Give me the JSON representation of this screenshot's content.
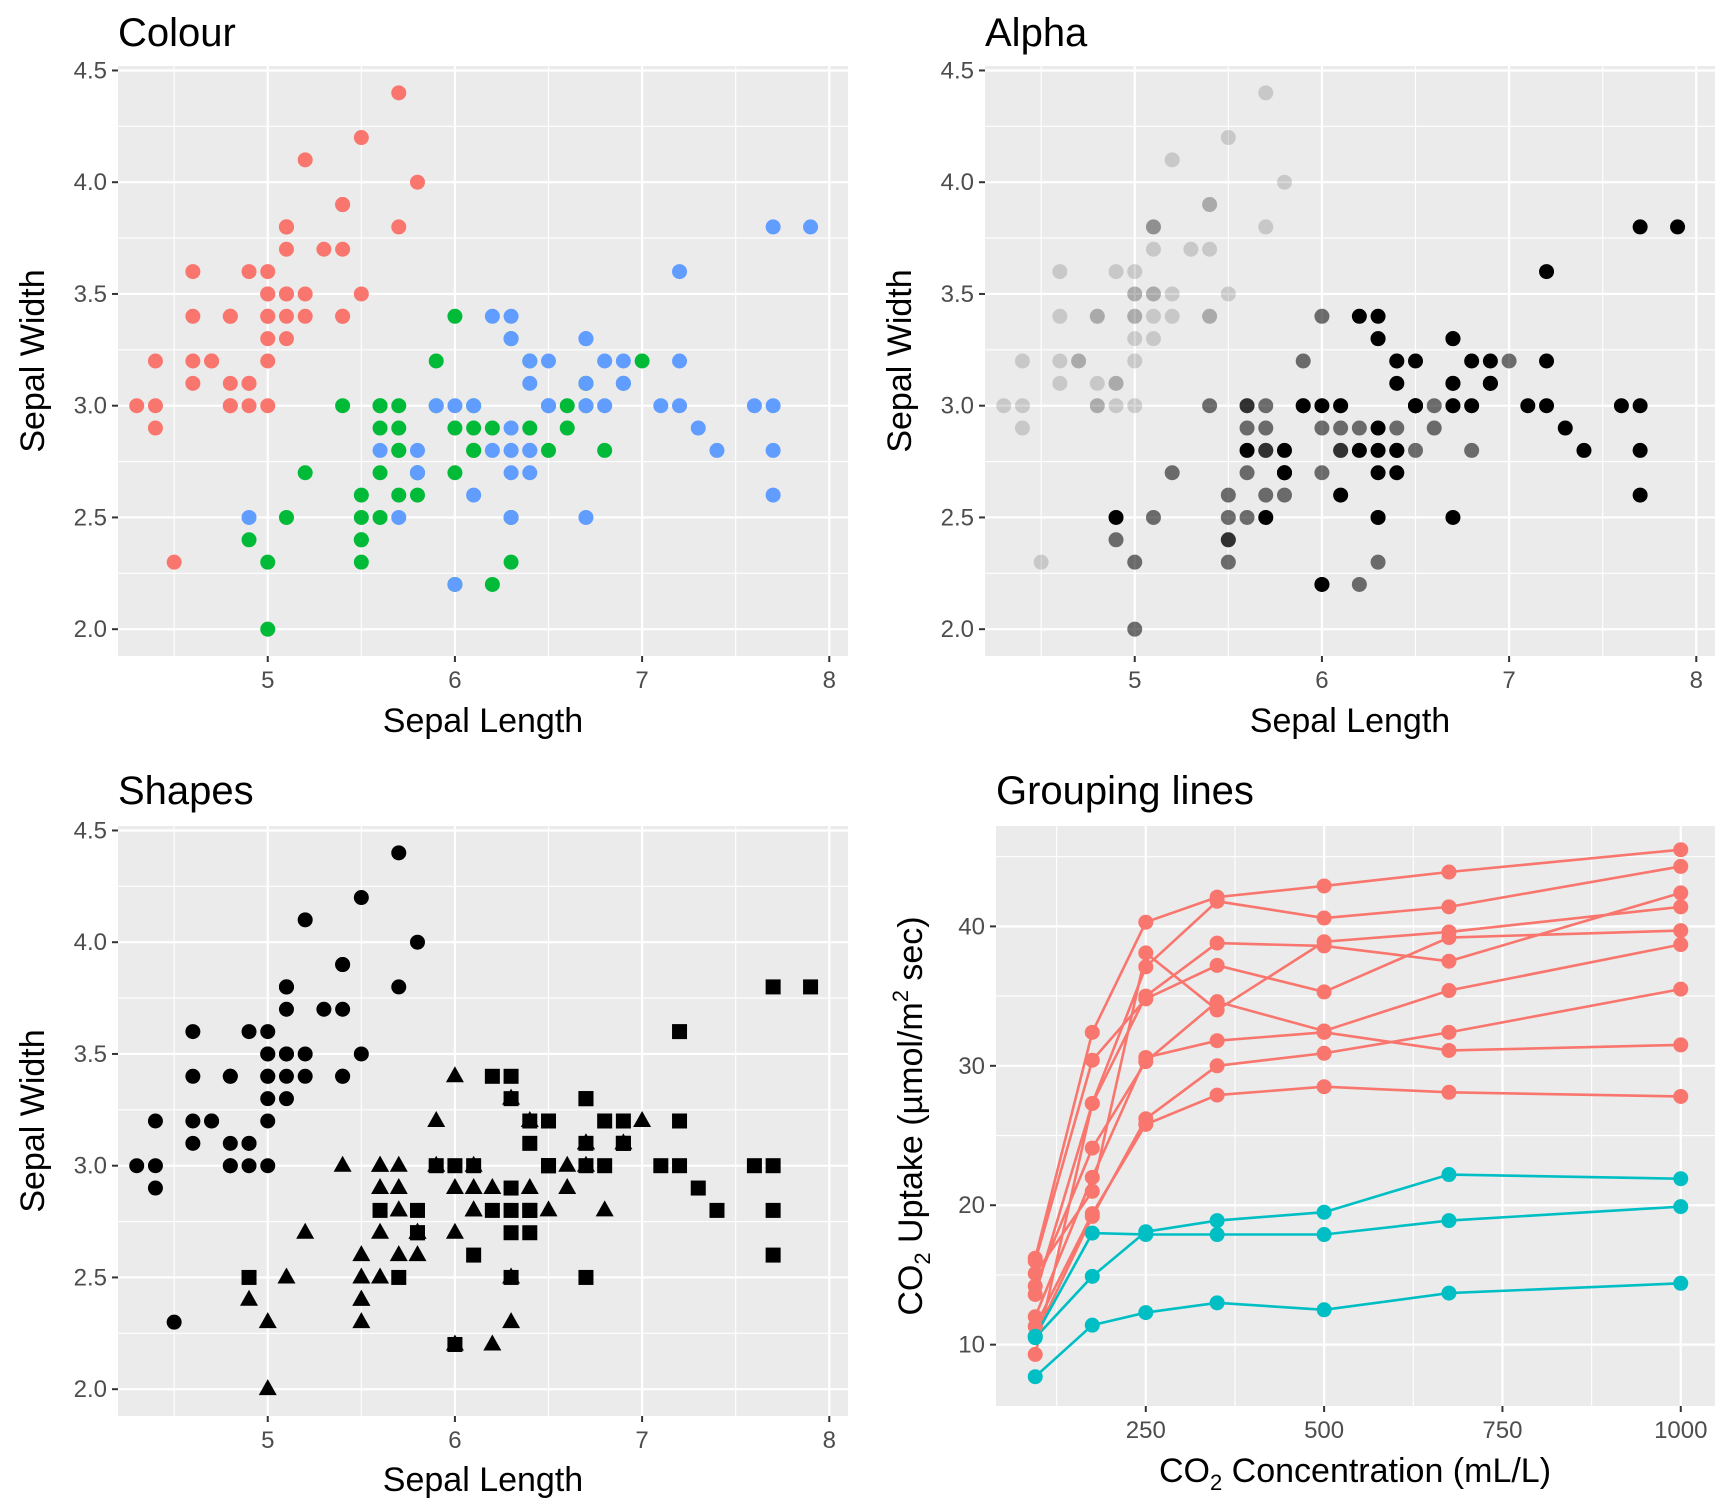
{
  "chart_data": [
    {
      "type": "scatter",
      "title": "Colour",
      "xlabel": "Sepal Length",
      "ylabel": "Sepal Width",
      "xlim": [
        4.2,
        8.1
      ],
      "ylim": [
        1.88,
        4.52
      ],
      "xticks": [
        5,
        6,
        7,
        8
      ],
      "yticks": [
        2.0,
        2.5,
        3.0,
        3.5,
        4.0,
        4.5
      ],
      "ytick_labels": [
        "2.0",
        "2.5",
        "3.0",
        "3.5",
        "4.0",
        "4.5"
      ],
      "encoding": "colour",
      "groups": [
        {
          "color": "#f8766d",
          "points": [
            [
              5.1,
              3.5
            ],
            [
              4.9,
              3.0
            ],
            [
              4.7,
              3.2
            ],
            [
              4.6,
              3.1
            ],
            [
              5.0,
              3.6
            ],
            [
              5.4,
              3.9
            ],
            [
              4.6,
              3.4
            ],
            [
              5.0,
              3.4
            ],
            [
              4.4,
              2.9
            ],
            [
              4.9,
              3.1
            ],
            [
              5.4,
              3.7
            ],
            [
              4.8,
              3.4
            ],
            [
              4.8,
              3.0
            ],
            [
              4.3,
              3.0
            ],
            [
              5.8,
              4.0
            ],
            [
              5.7,
              4.4
            ],
            [
              5.4,
              3.9
            ],
            [
              5.1,
              3.5
            ],
            [
              5.7,
              3.8
            ],
            [
              5.1,
              3.8
            ],
            [
              5.4,
              3.4
            ],
            [
              5.1,
              3.7
            ],
            [
              4.6,
              3.6
            ],
            [
              5.1,
              3.3
            ],
            [
              4.8,
              3.4
            ],
            [
              5.0,
              3.0
            ],
            [
              5.0,
              3.4
            ],
            [
              5.2,
              3.5
            ],
            [
              5.2,
              3.4
            ],
            [
              4.7,
              3.2
            ],
            [
              4.8,
              3.1
            ],
            [
              5.4,
              3.4
            ],
            [
              5.2,
              4.1
            ],
            [
              5.5,
              4.2
            ],
            [
              4.9,
              3.1
            ],
            [
              5.0,
              3.2
            ],
            [
              5.5,
              3.5
            ],
            [
              4.9,
              3.6
            ],
            [
              4.4,
              3.0
            ],
            [
              5.1,
              3.4
            ],
            [
              5.0,
              3.5
            ],
            [
              4.5,
              2.3
            ],
            [
              4.4,
              3.2
            ],
            [
              5.0,
              3.5
            ],
            [
              5.1,
              3.8
            ],
            [
              4.8,
              3.0
            ],
            [
              5.1,
              3.8
            ],
            [
              4.6,
              3.2
            ],
            [
              5.3,
              3.7
            ],
            [
              5.0,
              3.3
            ]
          ]
        },
        {
          "color": "#00ba38",
          "points": [
            [
              7.0,
              3.2
            ],
            [
              6.4,
              3.2
            ],
            [
              6.9,
              3.1
            ],
            [
              5.5,
              2.3
            ],
            [
              6.5,
              2.8
            ],
            [
              5.7,
              2.8
            ],
            [
              6.3,
              3.3
            ],
            [
              4.9,
              2.4
            ],
            [
              6.6,
              2.9
            ],
            [
              5.2,
              2.7
            ],
            [
              5.0,
              2.0
            ],
            [
              5.9,
              3.0
            ],
            [
              6.0,
              2.2
            ],
            [
              6.1,
              2.9
            ],
            [
              5.6,
              2.9
            ],
            [
              6.7,
              3.1
            ],
            [
              5.6,
              3.0
            ],
            [
              5.8,
              2.7
            ],
            [
              6.2,
              2.2
            ],
            [
              5.6,
              2.5
            ],
            [
              5.9,
              3.2
            ],
            [
              6.1,
              2.8
            ],
            [
              6.3,
              2.5
            ],
            [
              6.1,
              2.8
            ],
            [
              6.4,
              2.9
            ],
            [
              6.6,
              3.0
            ],
            [
              6.8,
              2.8
            ],
            [
              6.7,
              3.0
            ],
            [
              6.0,
              2.9
            ],
            [
              5.7,
              2.6
            ],
            [
              5.5,
              2.4
            ],
            [
              5.5,
              2.4
            ],
            [
              5.8,
              2.7
            ],
            [
              6.0,
              2.7
            ],
            [
              5.4,
              3.0
            ],
            [
              6.0,
              3.4
            ],
            [
              6.7,
              3.1
            ],
            [
              6.3,
              2.3
            ],
            [
              5.6,
              3.0
            ],
            [
              5.5,
              2.5
            ],
            [
              5.5,
              2.6
            ],
            [
              6.1,
              3.0
            ],
            [
              5.8,
              2.6
            ],
            [
              5.0,
              2.3
            ],
            [
              5.6,
              2.7
            ],
            [
              5.7,
              3.0
            ],
            [
              5.7,
              2.9
            ],
            [
              6.2,
              2.9
            ],
            [
              5.1,
              2.5
            ],
            [
              5.7,
              2.8
            ]
          ]
        },
        {
          "color": "#619cff",
          "points": [
            [
              6.3,
              3.3
            ],
            [
              5.8,
              2.7
            ],
            [
              7.1,
              3.0
            ],
            [
              6.3,
              2.9
            ],
            [
              6.5,
              3.0
            ],
            [
              7.6,
              3.0
            ],
            [
              4.9,
              2.5
            ],
            [
              7.3,
              2.9
            ],
            [
              6.7,
              2.5
            ],
            [
              7.2,
              3.6
            ],
            [
              6.5,
              3.2
            ],
            [
              6.4,
              2.7
            ],
            [
              6.8,
              3.0
            ],
            [
              5.7,
              2.5
            ],
            [
              5.8,
              2.8
            ],
            [
              6.4,
              3.2
            ],
            [
              6.5,
              3.0
            ],
            [
              7.7,
              3.8
            ],
            [
              7.7,
              2.6
            ],
            [
              6.0,
              2.2
            ],
            [
              6.9,
              3.2
            ],
            [
              5.6,
              2.8
            ],
            [
              7.7,
              2.8
            ],
            [
              6.3,
              2.7
            ],
            [
              6.7,
              3.3
            ],
            [
              7.2,
              3.2
            ],
            [
              6.2,
              2.8
            ],
            [
              6.1,
              3.0
            ],
            [
              6.4,
              2.8
            ],
            [
              7.2,
              3.0
            ],
            [
              7.4,
              2.8
            ],
            [
              7.9,
              3.8
            ],
            [
              6.4,
              2.8
            ],
            [
              6.3,
              2.8
            ],
            [
              6.1,
              2.6
            ],
            [
              7.7,
              3.0
            ],
            [
              6.3,
              3.4
            ],
            [
              6.4,
              3.1
            ],
            [
              6.0,
              3.0
            ],
            [
              6.9,
              3.1
            ],
            [
              6.7,
              3.1
            ],
            [
              6.9,
              3.1
            ],
            [
              5.8,
              2.7
            ],
            [
              6.8,
              3.2
            ],
            [
              6.7,
              3.3
            ],
            [
              6.7,
              3.0
            ],
            [
              6.3,
              2.5
            ],
            [
              6.5,
              3.0
            ],
            [
              6.2,
              3.4
            ],
            [
              5.9,
              3.0
            ]
          ]
        }
      ]
    },
    {
      "type": "scatter",
      "title": "Alpha",
      "xlabel": "Sepal Length",
      "ylabel": "Sepal Width",
      "xlim": [
        4.2,
        8.1
      ],
      "ylim": [
        1.88,
        4.52
      ],
      "xticks": [
        5,
        6,
        7,
        8
      ],
      "yticks": [
        2.0,
        2.5,
        3.0,
        3.5,
        4.0,
        4.5
      ],
      "ytick_labels": [
        "2.0",
        "2.5",
        "3.0",
        "3.5",
        "4.0",
        "4.5"
      ],
      "encoding": "alpha",
      "groups": [
        {
          "color": "#000000",
          "alpha": 0.15,
          "group_ref": 0
        },
        {
          "color": "#000000",
          "alpha": 0.55,
          "group_ref": 1
        },
        {
          "color": "#000000",
          "alpha": 1.0,
          "group_ref": 2
        }
      ]
    },
    {
      "type": "scatter",
      "title": "Shapes",
      "xlabel": "Sepal Length",
      "ylabel": "Sepal Width",
      "xlim": [
        4.2,
        8.1
      ],
      "ylim": [
        1.88,
        4.52
      ],
      "xticks": [
        5,
        6,
        7,
        8
      ],
      "yticks": [
        2.0,
        2.5,
        3.0,
        3.5,
        4.0,
        4.5
      ],
      "ytick_labels": [
        "2.0",
        "2.5",
        "3.0",
        "3.5",
        "4.0",
        "4.5"
      ],
      "encoding": "shape",
      "groups": [
        {
          "color": "#000000",
          "shape": "circle",
          "group_ref": 0
        },
        {
          "color": "#000000",
          "shape": "triangle",
          "group_ref": 1
        },
        {
          "color": "#000000",
          "shape": "square",
          "group_ref": 2
        }
      ]
    },
    {
      "type": "line",
      "title": "Grouping lines",
      "xlabel": "CO2 Concentration (mL/L)",
      "ylabel": "CO2 Uptake (µmol/m2 sec)",
      "xlim": [
        40,
        1048
      ],
      "ylim": [
        5.6,
        47.2
      ],
      "xticks": [
        250,
        500,
        750,
        1000
      ],
      "yticks": [
        10,
        20,
        30,
        40
      ],
      "x": [
        95,
        175,
        250,
        350,
        500,
        675,
        1000
      ],
      "series": [
        {
          "color": "#f8766d",
          "values": [
            16.0,
            30.4,
            34.8,
            37.2,
            35.3,
            39.2,
            39.7
          ]
        },
        {
          "color": "#f8766d",
          "values": [
            13.6,
            27.3,
            37.1,
            41.8,
            40.6,
            41.4,
            44.3
          ]
        },
        {
          "color": "#f8766d",
          "values": [
            16.2,
            32.4,
            40.3,
            42.1,
            42.9,
            43.9,
            45.5
          ]
        },
        {
          "color": "#f8766d",
          "values": [
            14.2,
            24.1,
            30.3,
            34.6,
            32.5,
            35.4,
            38.7
          ]
        },
        {
          "color": "#f8766d",
          "values": [
            9.3,
            27.3,
            35.0,
            38.8,
            38.6,
            37.5,
            42.4
          ]
        },
        {
          "color": "#f8766d",
          "values": [
            15.1,
            21.0,
            38.1,
            34.0,
            38.9,
            39.6,
            41.4
          ]
        },
        {
          "color": "#f8766d",
          "values": [
            10.6,
            19.2,
            26.2,
            30.0,
            30.9,
            32.4,
            35.5
          ]
        },
        {
          "color": "#f8766d",
          "values": [
            12.0,
            22.0,
            30.6,
            31.8,
            32.4,
            31.1,
            31.5
          ]
        },
        {
          "color": "#f8766d",
          "values": [
            11.3,
            19.4,
            25.8,
            27.9,
            28.5,
            28.1,
            27.8
          ]
        },
        {
          "color": "#00bfc4",
          "values": [
            10.5,
            14.9,
            18.1,
            18.9,
            19.5,
            22.2,
            21.9
          ]
        },
        {
          "color": "#00bfc4",
          "values": [
            7.7,
            11.4,
            12.3,
            13.0,
            12.5,
            13.7,
            14.4
          ]
        },
        {
          "color": "#00bfc4",
          "values": [
            10.6,
            18.0,
            17.9,
            17.9,
            17.9,
            18.9,
            19.9
          ]
        }
      ]
    }
  ]
}
